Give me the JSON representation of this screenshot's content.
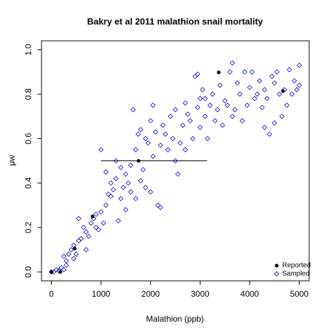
{
  "chart_data": {
    "type": "scatter",
    "title": "Bakry et al 2011 malathion snail mortality",
    "x_label": "Malathion (ppb)",
    "y_label": "μw",
    "xlim": [
      -200,
      5200
    ],
    "ylim": [
      -0.04,
      1.04
    ],
    "xticks": [
      0,
      1000,
      2000,
      3000,
      4000,
      5000
    ],
    "yticks": [
      {
        "value": 0,
        "label": "0.0"
      },
      {
        "value": 0.2,
        "label": "0.2"
      },
      {
        "value": 0.4,
        "label": "0.4"
      },
      {
        "value": 0.6,
        "label": "0.6"
      },
      {
        "value": 0.8,
        "label": "0.8"
      },
      {
        "value": 1,
        "label": "1.0"
      }
    ],
    "legend": "bottomright",
    "interval": {
      "y": 0.5,
      "xmin": 1000,
      "xmax": 3140,
      "color": "#000000"
    },
    "series": [
      {
        "name": "Reported",
        "color": "#000000",
        "marker": "circle",
        "x": [
          0,
          180,
          470,
          830,
          1760,
          3375,
          4670
        ],
        "values": [
          0,
          0,
          0.105,
          0.25,
          0.5,
          0.898,
          0.814
        ]
      },
      {
        "name": "Sampled",
        "color": "#0000cc",
        "marker": "diamond",
        "x": [
          0,
          50,
          100,
          150,
          200,
          250,
          300,
          250,
          350,
          300,
          400,
          450,
          500,
          450,
          550,
          600,
          550,
          650,
          700,
          700,
          750,
          800,
          850,
          900,
          900,
          950,
          1000,
          1050,
          1100,
          1150,
          1200,
          1000,
          1100,
          1200,
          1250,
          1300,
          1350,
          1300,
          1400,
          1400,
          1450,
          1500,
          1500,
          1550,
          1600,
          1600,
          1650,
          1700,
          1700,
          1750,
          1800,
          1800,
          1850,
          1900,
          1900,
          1950,
          2000,
          2000,
          2050,
          2050,
          2100,
          2150,
          2200,
          2200,
          2250,
          2300,
          2350,
          2400,
          2450,
          2500,
          2500,
          2550,
          2600,
          2650,
          2700,
          2700,
          2750,
          2800,
          2850,
          2900,
          2950,
          3000,
          3000,
          3050,
          3100,
          3150,
          3200,
          3250,
          3300,
          3350,
          3400,
          3450,
          3500,
          3550,
          3600,
          3650,
          3650,
          3700,
          3750,
          3800,
          3850,
          3900,
          3950,
          4000,
          4050,
          4100,
          4150,
          4200,
          4250,
          4300,
          4350,
          4400,
          4450,
          4500,
          4550,
          4600,
          4650,
          4700,
          4750,
          4800,
          4850,
          4900,
          4950,
          5000,
          5000,
          4500,
          4300,
          2950,
          3100
        ],
        "values": [
          0,
          0,
          0.01,
          0.005,
          0.02,
          0.01,
          0.03,
          0.07,
          0.08,
          0.05,
          0.1,
          0.12,
          0.08,
          0.06,
          0.14,
          0.15,
          0.24,
          0.2,
          0.18,
          0.1,
          0.16,
          0.22,
          0.24,
          0.26,
          0.2,
          0.19,
          0.27,
          0.22,
          0.3,
          0.35,
          0.4,
          0.55,
          0.45,
          0.34,
          0.37,
          0.42,
          0.23,
          0.5,
          0.47,
          0.33,
          0.38,
          0.44,
          0.28,
          0.4,
          0.36,
          0.48,
          0.73,
          0.33,
          0.55,
          0.62,
          0.64,
          0.41,
          0.46,
          0.38,
          0.6,
          0.58,
          0.68,
          0.36,
          0.75,
          0.52,
          0.63,
          0.3,
          0.29,
          0.57,
          0.66,
          0.62,
          0.55,
          0.7,
          0.6,
          0.73,
          0.5,
          0.44,
          0.58,
          0.66,
          0.76,
          0.55,
          0.71,
          0.68,
          0.6,
          0.88,
          0.74,
          0.78,
          0.65,
          0.82,
          0.7,
          0.6,
          0.75,
          0.8,
          0.68,
          0.73,
          0.84,
          0.66,
          0.77,
          0.75,
          0.9,
          0.94,
          0.7,
          0.73,
          0.85,
          0.8,
          0.68,
          0.9,
          0.75,
          0.83,
          0.9,
          0.78,
          0.8,
          0.86,
          0.74,
          0.82,
          0.78,
          0.62,
          0.88,
          0.85,
          0.9,
          0.8,
          0.7,
          0.82,
          0.75,
          0.91,
          0.8,
          0.86,
          0.82,
          0.93,
          0.84,
          0.67,
          0.65,
          0.89,
          0.78
        ]
      }
    ]
  }
}
